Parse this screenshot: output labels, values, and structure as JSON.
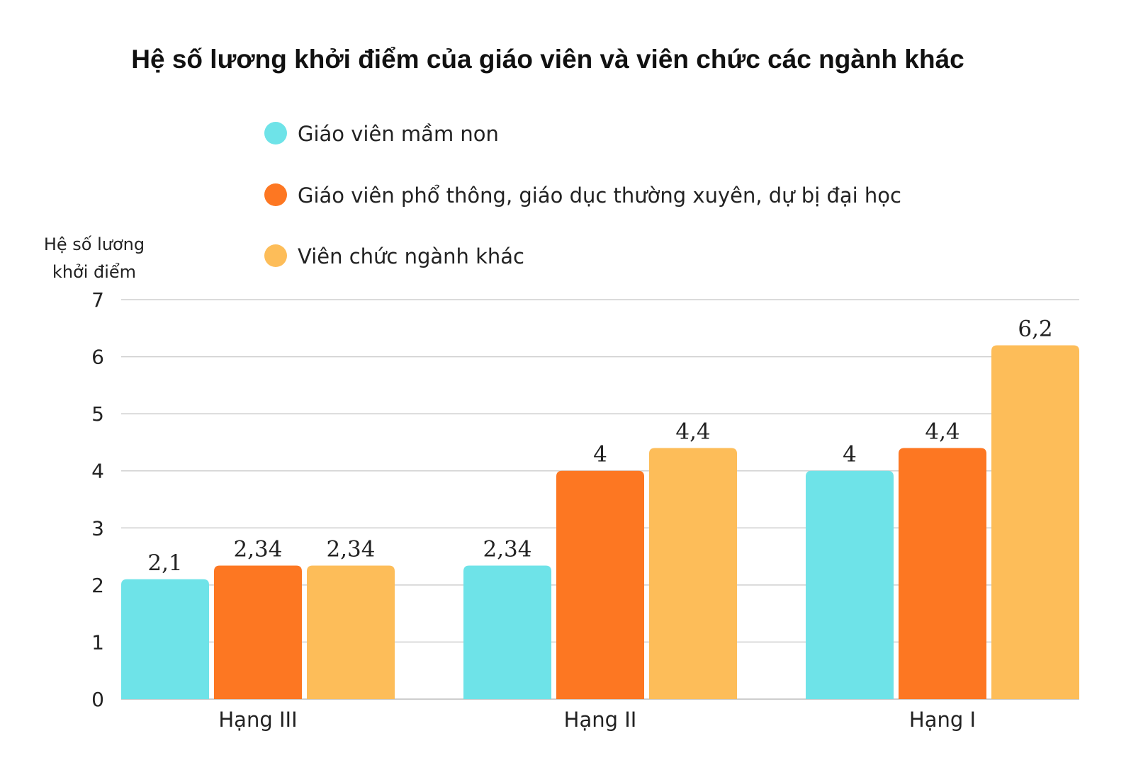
{
  "chart_data": {
    "type": "bar",
    "title": "Hệ số lương khởi điểm của giáo viên và viên chức các ngành khác",
    "ylabel_lines": [
      "Hệ số lương",
      "khởi điểm"
    ],
    "xlabel": "",
    "categories": [
      "Hạng III",
      "Hạng II",
      "Hạng I"
    ],
    "ylim": [
      0,
      7
    ],
    "yticks": [
      0,
      1,
      2,
      3,
      4,
      5,
      6,
      7
    ],
    "grid": true,
    "legend_position": "top",
    "series": [
      {
        "name": "Giáo viên mầm non",
        "color": "#6ee3e8",
        "values": [
          2.1,
          2.34,
          4
        ],
        "labels": [
          "2,1",
          "2,34",
          "4"
        ]
      },
      {
        "name": "Giáo viên phổ thông, giáo dục thường xuyên, dự bị đại học",
        "color": "#fd7722",
        "values": [
          2.34,
          4,
          4.4
        ],
        "labels": [
          "2,34",
          "4",
          "4,4"
        ]
      },
      {
        "name": "Viên chức ngành khác",
        "color": "#fdbd59",
        "values": [
          2.34,
          4.4,
          6.2
        ],
        "labels": [
          "2,34",
          "4,4",
          "6,2"
        ]
      }
    ]
  }
}
